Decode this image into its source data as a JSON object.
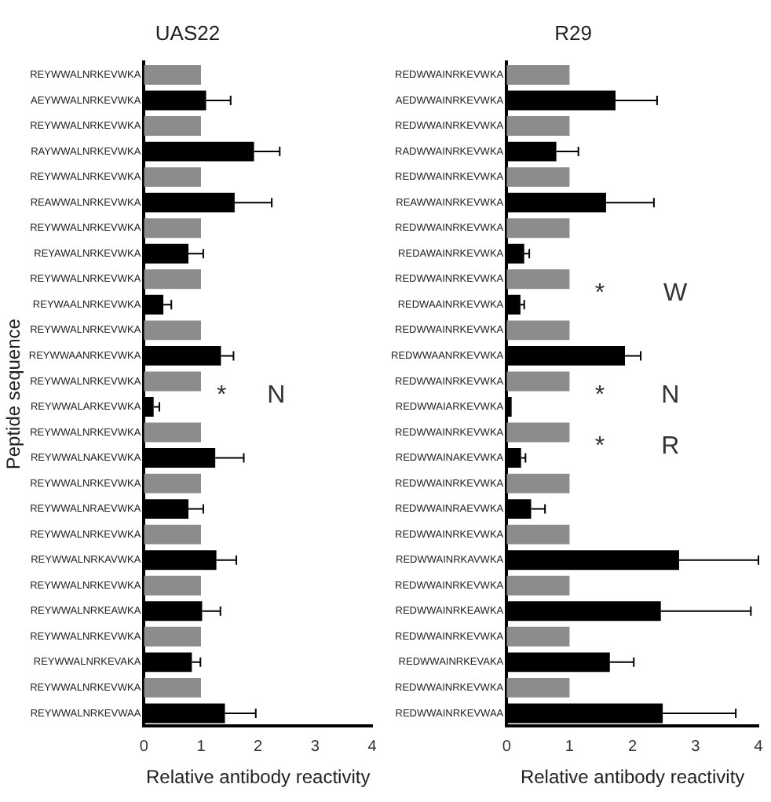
{
  "chart_data": [
    {
      "type": "bar",
      "orientation": "horizontal",
      "title": "UAS22",
      "ylabel": "Peptide sequence",
      "xlabel": "Relative antibody reactivity",
      "categories": [
        "REYWWALNRKEVWKA",
        "AEYWWALNRKEVWKA",
        "REYWWALNRKEVWKA",
        "RAYWWALNRKEVWKA",
        "REYWWALNRKEVWKA",
        "REAWWALNRKEVWKA",
        "REYWWALNRKEVWKA",
        "REYAWALNRKEVWKA",
        "REYWWALNRKEVWKA",
        "REYWAALNRKEVWKA",
        "REYWWALNRKEVWKA",
        "REYWWAANRKEVWKA",
        "REYWWALNRKEVWKA",
        "REYWWALARKEVWKA",
        "REYWWALNRKEVWKA",
        "REYWWALNAKEVWKA",
        "REYWWALNRKEVWKA",
        "REYWWALNRAEVWKA",
        "REYWWALNRKEVWKA",
        "REYWWALNRKAVWKA",
        "REYWWALNRKEVWKA",
        "REYWWALNRKEAWKA",
        "REYWWALNRKEVWKA",
        "REYWWALNRKEVAKA",
        "REYWWALNRKEVWKA",
        "REYWWALNRKEVWAA"
      ],
      "values": [
        1,
        1.09,
        1,
        1.93,
        1,
        1.59,
        1,
        0.78,
        1,
        0.34,
        1,
        1.35,
        1,
        0.17,
        1,
        1.25,
        1,
        0.78,
        1,
        1.27,
        1,
        1.02,
        1,
        0.84,
        1,
        1.42
      ],
      "colors": [
        "#8c8c8c",
        "#000000",
        "#8c8c8c",
        "#000000",
        "#8c8c8c",
        "#000000",
        "#8c8c8c",
        "#000000",
        "#8c8c8c",
        "#000000",
        "#8c8c8c",
        "#000000",
        "#8c8c8c",
        "#000000",
        "#8c8c8c",
        "#000000",
        "#8c8c8c",
        "#000000",
        "#8c8c8c",
        "#000000",
        "#8c8c8c",
        "#000000",
        "#8c8c8c",
        "#000000",
        "#8c8c8c",
        "#000000"
      ],
      "errors": [
        null,
        [
          1.09,
          1.52
        ],
        null,
        [
          1.93,
          2.38
        ],
        null,
        [
          1.59,
          2.24
        ],
        null,
        [
          0.78,
          1.04
        ],
        null,
        [
          0.34,
          0.48
        ],
        null,
        [
          1.35,
          1.57
        ],
        null,
        [
          0.17,
          0.27
        ],
        null,
        [
          1.25,
          1.75
        ],
        null,
        [
          0.78,
          1.04
        ],
        null,
        [
          1.27,
          1.62
        ],
        null,
        [
          1.02,
          1.34
        ],
        null,
        [
          0.84,
          0.99
        ],
        null,
        [
          1.42,
          1.96
        ]
      ],
      "xlim": [
        0,
        4
      ],
      "xticks": [
        0,
        1,
        2,
        3,
        4
      ],
      "grid": false,
      "legend": false,
      "annotations": [
        "*",
        "N"
      ]
    },
    {
      "type": "bar",
      "orientation": "horizontal",
      "title": "R29",
      "xlabel": "Relative antibody reactivity",
      "categories": [
        "REDWWAINRKEVWKA",
        "AEDWWAINRKEVWKA",
        "REDWWAINRKEVWKA",
        "RADWWAINRKEVWKA",
        "REDWWAINRKEVWKA",
        "REAWWAINRKEVWKA",
        "REDWWAINRKEVWKA",
        "REDAWAINRKEVWKA",
        "REDWWAINRKEVWKA",
        "REDWAAINRKEVWKA",
        "REDWWAINRKEVWKA",
        "REDWWAANRKEVWKA",
        "REDWWAINRKEVWKA",
        "REDWWAIARKEVWKA",
        "REDWWAINRKEVWKA",
        "REDWWAINAKEVWKA",
        "REDWWAINRKEVWKA",
        "REDWWAINRAEVWKA",
        "REDWWAINRKEVWKA",
        "REDWWAINRKAVWKA",
        "REDWWAINRKEVWKA",
        "REDWWAINRKEAWKA",
        "REDWWAINRKEVWKA",
        "REDWWAINRKEVAKA",
        "REDWWAINRKEVWKA",
        "REDWWAINRKEVWAA"
      ],
      "values": [
        1,
        1.73,
        1,
        0.79,
        1,
        1.58,
        1,
        0.28,
        1,
        0.22,
        1,
        1.88,
        1,
        0.08,
        1,
        0.23,
        1,
        0.39,
        1,
        2.74,
        1,
        2.45,
        1,
        1.64,
        1,
        2.48
      ],
      "colors": [
        "#8c8c8c",
        "#000000",
        "#8c8c8c",
        "#000000",
        "#8c8c8c",
        "#000000",
        "#8c8c8c",
        "#000000",
        "#8c8c8c",
        "#000000",
        "#8c8c8c",
        "#000000",
        "#8c8c8c",
        "#000000",
        "#8c8c8c",
        "#000000",
        "#8c8c8c",
        "#000000",
        "#8c8c8c",
        "#000000",
        "#8c8c8c",
        "#000000",
        "#8c8c8c",
        "#000000",
        "#8c8c8c",
        "#000000"
      ],
      "errors": [
        null,
        [
          1.73,
          2.39
        ],
        null,
        [
          0.79,
          1.14
        ],
        null,
        [
          1.58,
          2.34
        ],
        null,
        [
          0.28,
          0.36
        ],
        null,
        [
          0.22,
          0.28
        ],
        null,
        [
          1.88,
          2.13
        ],
        null,
        null,
        null,
        [
          0.23,
          0.3
        ],
        null,
        [
          0.39,
          0.61
        ],
        null,
        [
          2.74,
          4
        ],
        null,
        [
          2.45,
          3.88
        ],
        null,
        [
          1.64,
          2.02
        ],
        null,
        [
          2.48,
          3.64
        ]
      ],
      "xlim": [
        0,
        4
      ],
      "xticks": [
        0,
        1,
        2,
        3,
        4
      ],
      "grid": false,
      "legend": false,
      "annotations": [
        "*",
        "W",
        "*",
        "N",
        "*",
        "R"
      ]
    }
  ]
}
